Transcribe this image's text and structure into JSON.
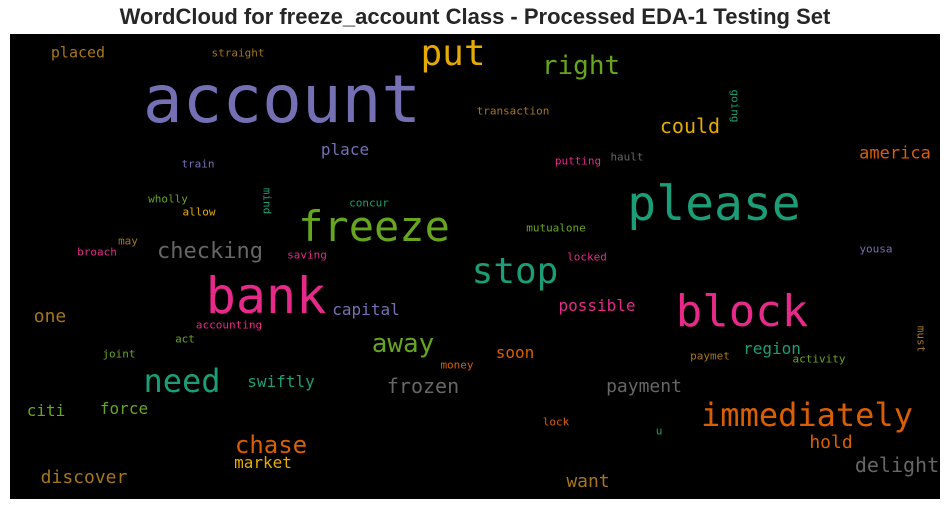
{
  "chart_data": {
    "type": "wordcloud",
    "title": "WordCloud for freeze_account Class - Processed EDA-1 Testing Set",
    "background": "#000000",
    "colormap": "Dark2",
    "words": [
      {
        "text": "account",
        "color": "#7570b3"
      },
      {
        "text": "put",
        "color": "#e6ab02"
      },
      {
        "text": "right",
        "color": "#66a61e"
      },
      {
        "text": "placed",
        "color": "#a6761d"
      },
      {
        "text": "straight",
        "color": "#a6761d"
      },
      {
        "text": "transaction",
        "color": "#a6761d"
      },
      {
        "text": "going",
        "color": "#1b9e77"
      },
      {
        "text": "could",
        "color": "#e6ab02"
      },
      {
        "text": "place",
        "color": "#7570b3"
      },
      {
        "text": "train",
        "color": "#7570b3"
      },
      {
        "text": "putting",
        "color": "#e7298a"
      },
      {
        "text": "hault",
        "color": "#666666"
      },
      {
        "text": "america",
        "color": "#d95f02"
      },
      {
        "text": "please",
        "color": "#1b9e77"
      },
      {
        "text": "wholly",
        "color": "#66a61e"
      },
      {
        "text": "mind",
        "color": "#1b9e77"
      },
      {
        "text": "allow",
        "color": "#e6ab02"
      },
      {
        "text": "concur",
        "color": "#1b9e77"
      },
      {
        "text": "freeze",
        "color": "#66a61e"
      },
      {
        "text": "mutualone",
        "color": "#66a61e"
      },
      {
        "text": "may",
        "color": "#a6761d"
      },
      {
        "text": "checking",
        "color": "#666666"
      },
      {
        "text": "broach",
        "color": "#e7298a"
      },
      {
        "text": "saving",
        "color": "#e7298a"
      },
      {
        "text": "stop",
        "color": "#1b9e77"
      },
      {
        "text": "locked",
        "color": "#e7298a"
      },
      {
        "text": "yousa",
        "color": "#7570b3"
      },
      {
        "text": "bank",
        "color": "#e7298a"
      },
      {
        "text": "block",
        "color": "#e7298a"
      },
      {
        "text": "one",
        "color": "#a6761d"
      },
      {
        "text": "capital",
        "color": "#7570b3"
      },
      {
        "text": "possible",
        "color": "#e7298a"
      },
      {
        "text": "accounting",
        "color": "#e7298a"
      },
      {
        "text": "must",
        "color": "#a6761d"
      },
      {
        "text": "act",
        "color": "#66a61e"
      },
      {
        "text": "away",
        "color": "#66a61e"
      },
      {
        "text": "region",
        "color": "#1b9e77"
      },
      {
        "text": "joint",
        "color": "#66a61e"
      },
      {
        "text": "need",
        "color": "#1b9e77"
      },
      {
        "text": "soon",
        "color": "#d95f02"
      },
      {
        "text": "money",
        "color": "#d95f02"
      },
      {
        "text": "paymet",
        "color": "#a6761d"
      },
      {
        "text": "activity",
        "color": "#66a61e"
      },
      {
        "text": "swiftly",
        "color": "#1b9e77"
      },
      {
        "text": "frozen",
        "color": "#666666"
      },
      {
        "text": "payment",
        "color": "#666666"
      },
      {
        "text": "citi",
        "color": "#66a61e"
      },
      {
        "text": "force",
        "color": "#66a61e"
      },
      {
        "text": "immediately",
        "color": "#d95f02"
      },
      {
        "text": "lock",
        "color": "#d95f02"
      },
      {
        "text": "u",
        "color": "#1b9e77"
      },
      {
        "text": "chase",
        "color": "#d95f02"
      },
      {
        "text": "hold",
        "color": "#d95f02"
      },
      {
        "text": "market",
        "color": "#e6ab02"
      },
      {
        "text": "delight",
        "color": "#666666"
      },
      {
        "text": "discover",
        "color": "#a6761d"
      },
      {
        "text": "want",
        "color": "#a6761d"
      }
    ]
  }
}
